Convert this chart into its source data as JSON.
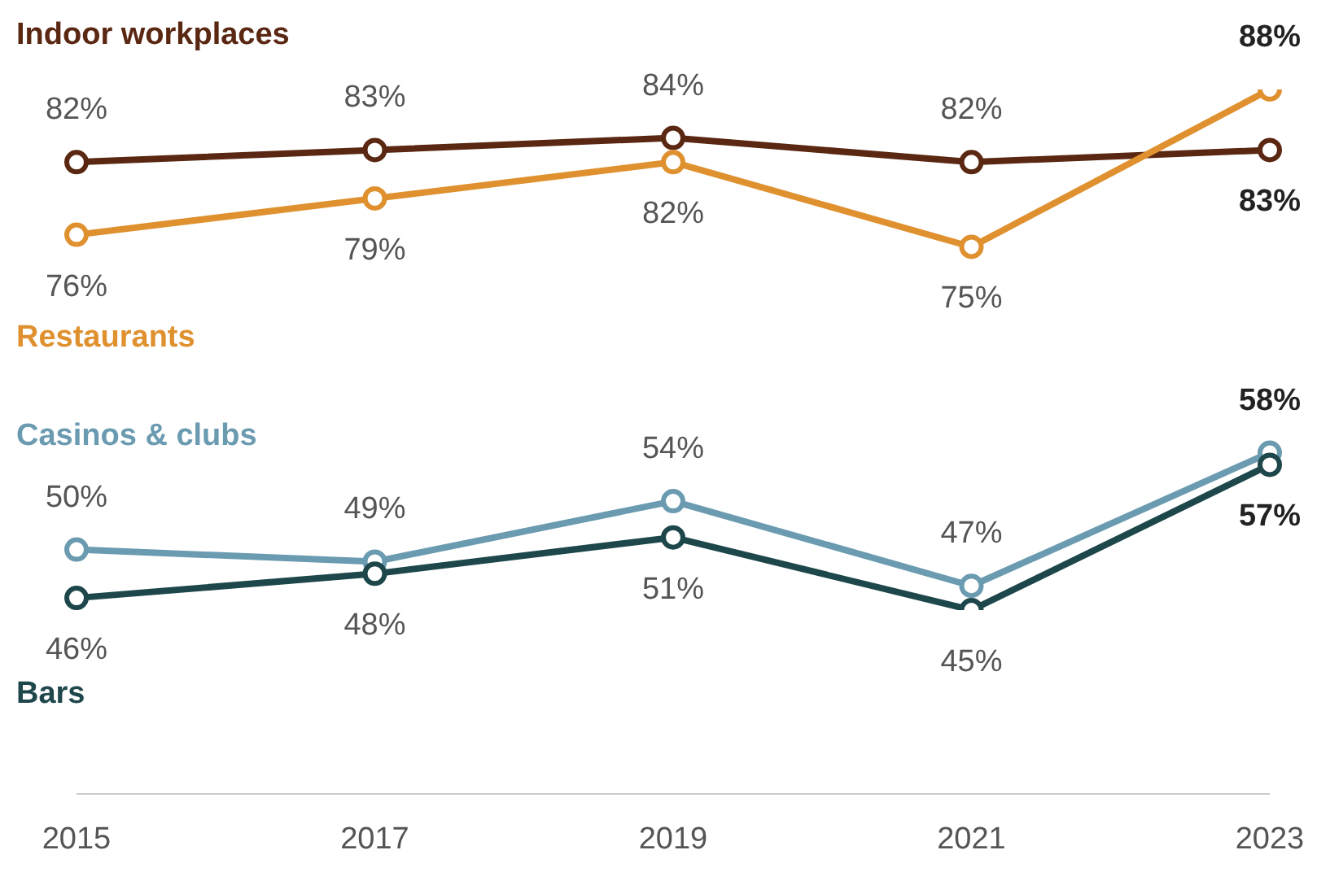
{
  "chart_data": {
    "type": "line",
    "categories": [
      "2015",
      "2017",
      "2019",
      "2021",
      "2023"
    ],
    "tick_labels": "x",
    "grid": false,
    "legend": false,
    "marker": "circle",
    "line_style": "solid",
    "series": [
      {
        "name": "Indoor workplaces",
        "color": "#5a2812",
        "values": [
          82,
          83,
          84,
          82,
          83
        ],
        "value_labels": [
          "82%",
          "83%",
          "84%",
          "82%",
          "83%"
        ]
      },
      {
        "name": "Restaurants",
        "color": "#e0912f",
        "values": [
          76,
          79,
          82,
          75,
          88
        ],
        "value_labels": [
          "76%",
          "79%",
          "82%",
          "75%",
          "88%"
        ]
      },
      {
        "name": "Casinos & clubs",
        "color": "#6b9bb0",
        "values": [
          50,
          49,
          54,
          47,
          58
        ],
        "value_labels": [
          "50%",
          "49%",
          "54%",
          "47%",
          "58%"
        ]
      },
      {
        "name": "Bars",
        "color": "#1e474c",
        "values": [
          46,
          48,
          51,
          45,
          57
        ],
        "value_labels": [
          "46%",
          "48%",
          "51%",
          "45%",
          "57%"
        ]
      }
    ]
  }
}
